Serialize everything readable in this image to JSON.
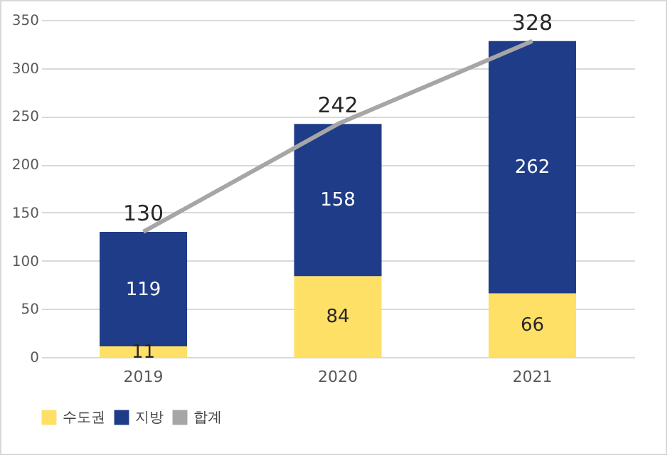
{
  "chart_data": {
    "type": "bar",
    "stacked": true,
    "categories": [
      "2019",
      "2020",
      "2021"
    ],
    "series": [
      {
        "name": "수도권",
        "color": "#ffe066",
        "values": [
          11,
          84,
          66
        ]
      },
      {
        "name": "지방",
        "color": "#1f3c88",
        "values": [
          119,
          158,
          262
        ]
      },
      {
        "name": "합계",
        "type": "line",
        "color": "#a6a6a6",
        "values": [
          130,
          242,
          328
        ]
      }
    ],
    "ylim": [
      0,
      350
    ],
    "yticks": [
      0,
      50,
      100,
      150,
      200,
      250,
      300,
      350
    ],
    "grid": "y",
    "legend": "bottom",
    "data_labels": true
  }
}
